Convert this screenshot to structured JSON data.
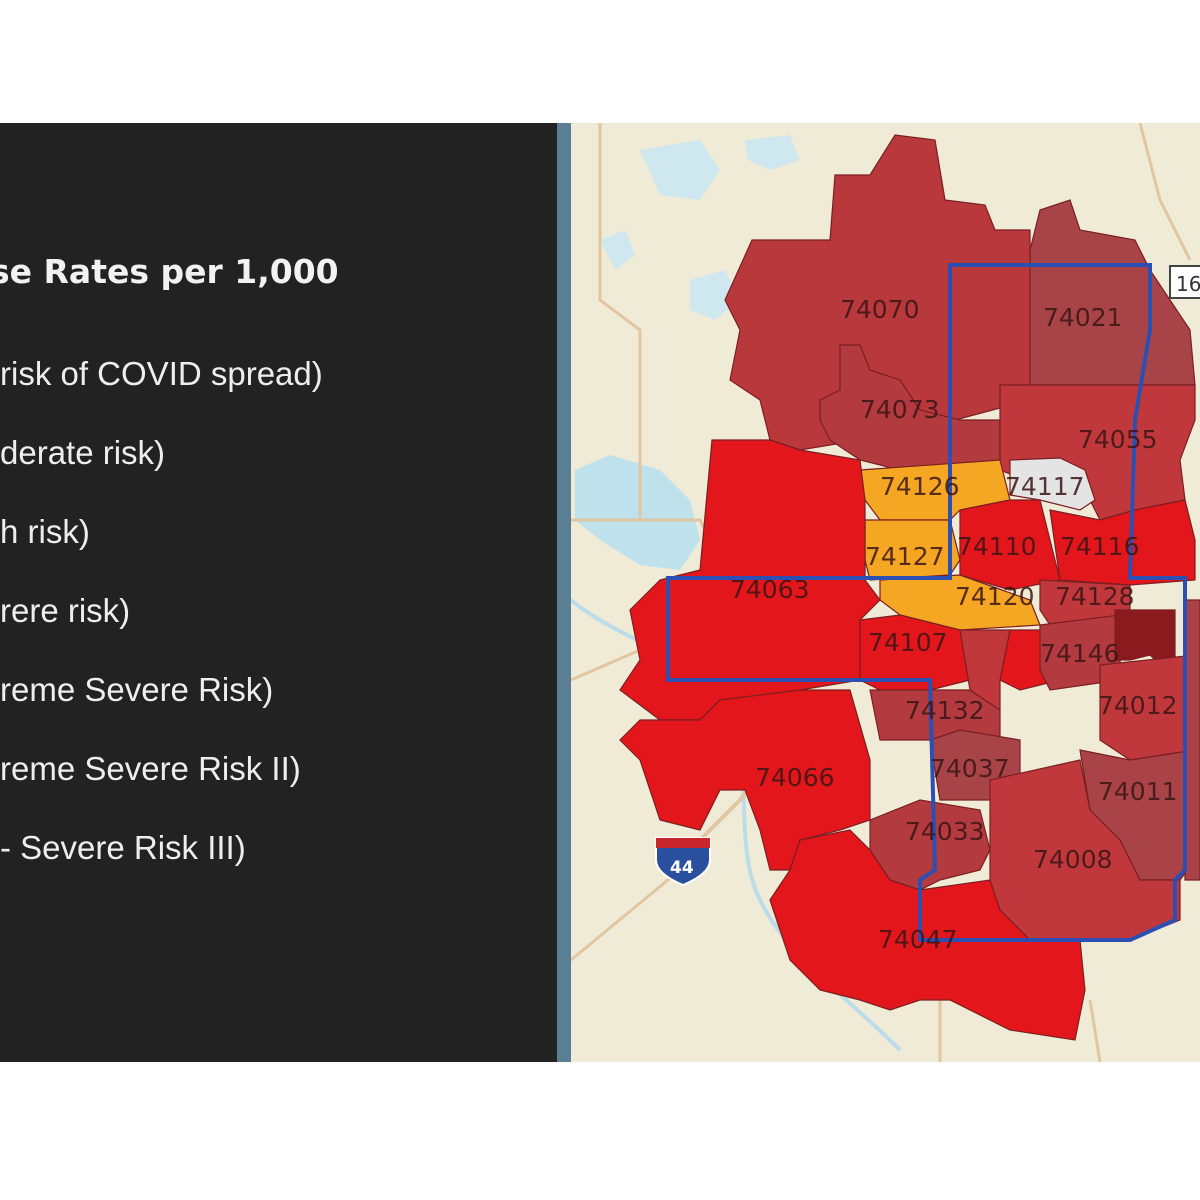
{
  "legend": {
    "title": "se Rates per 1,000",
    "items": [
      {
        "label": "risk of COVID spread)"
      },
      {
        "label": "derate risk)"
      },
      {
        "label": "h risk)"
      },
      {
        "label": "rere risk)"
      },
      {
        "label": "reme Severe Risk)"
      },
      {
        "label": "reme Severe Risk II)"
      },
      {
        "label": "- Severe Risk III)"
      }
    ]
  },
  "map": {
    "zip_labels": [
      "74070",
      "74021",
      "74073",
      "74055",
      "74126",
      "74117",
      "74127",
      "74110",
      "74116",
      "74063",
      "74120",
      "74128",
      "74107",
      "74146",
      "74132",
      "74012",
      "74037",
      "74011",
      "74033",
      "74008",
      "74066",
      "74047"
    ],
    "highway_shield": "44",
    "partial_route_label": "16",
    "colors": {
      "moderate_orange": "#f5a623",
      "severe_red": "#e8171c",
      "extreme_red_brown": "#c0383c",
      "extreme_dark_brown": "#a94348",
      "extreme_darkest": "#8b1a1f",
      "low_gray": "#e4e4e4",
      "city_limits_blue": "#2c4fb3",
      "basemap": "#f0ecd8",
      "water": "#bfe1ec"
    }
  }
}
